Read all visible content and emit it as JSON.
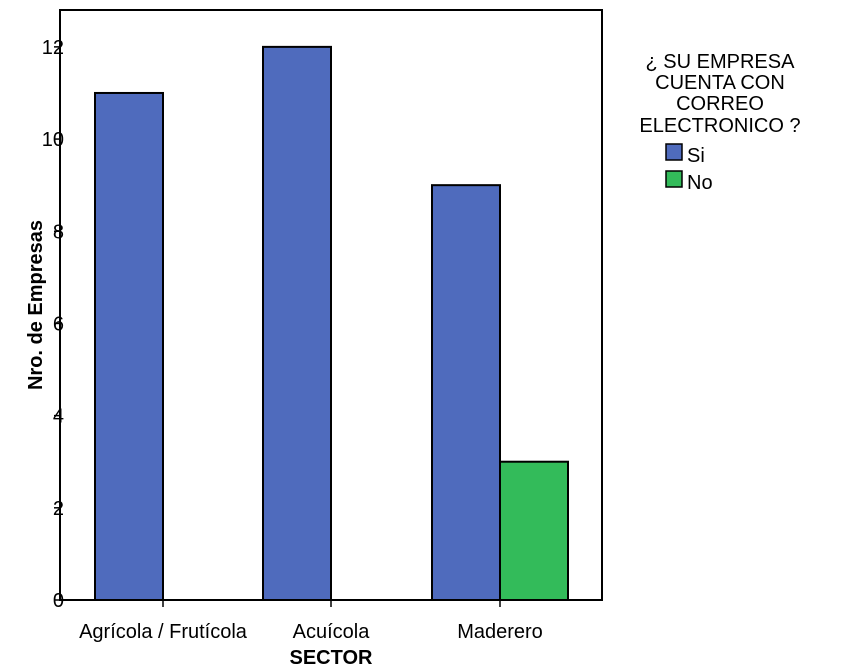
{
  "chart_data": {
    "type": "bar",
    "title": "",
    "xlabel": "SECTOR",
    "ylabel": "Nro. de Empresas",
    "categories": [
      "Agrícola / Frutícola",
      "Acuícola",
      "Maderero"
    ],
    "series": [
      {
        "name": "Si",
        "values": [
          11,
          12,
          9
        ],
        "color": "#4f6bbd"
      },
      {
        "name": "No",
        "values": [
          0,
          0,
          3
        ],
        "color": "#33bb5a"
      }
    ],
    "ylim": [
      0,
      12.8
    ],
    "yticks": [
      0,
      2,
      4,
      6,
      8,
      10,
      12
    ],
    "grid": false,
    "legend": {
      "title_lines": [
        "¿ SU EMPRESA",
        "CUENTA CON",
        "CORREO",
        "ELECTRONICO ?"
      ],
      "placement": "right"
    }
  }
}
